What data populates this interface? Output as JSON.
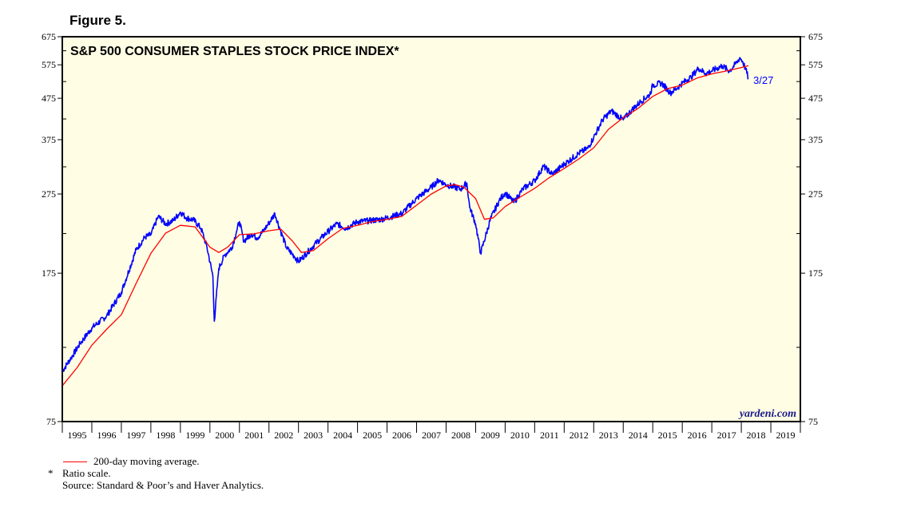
{
  "figure_label": "Figure 5.",
  "colors": {
    "price": "#0000ff",
    "moving_average": "#ff0000",
    "plot_bg": "#fffee4",
    "watermark": "#1a1a8c"
  },
  "chart_data": {
    "type": "line",
    "title": "S&P 500 CONSUMER STAPLES STOCK PRICE INDEX*",
    "scale": "log",
    "ylim": [
      75,
      675
    ],
    "xlim": [
      1995.0,
      2020.0
    ],
    "yticks": [
      75,
      175,
      275,
      375,
      475,
      575,
      675
    ],
    "yticks_left": [
      "75",
      "175",
      "275",
      "375",
      "475",
      "575",
      "675"
    ],
    "yticks_right": [
      "75",
      "175",
      "275",
      "375",
      "475",
      "575",
      "675"
    ],
    "xtick_labels": [
      "1995",
      "1996",
      "1997",
      "1998",
      "1999",
      "2000",
      "2001",
      "2002",
      "2003",
      "2004",
      "2005",
      "2006",
      "2007",
      "2008",
      "2009",
      "2010",
      "2011",
      "2012",
      "2013",
      "2014",
      "2015",
      "2016",
      "2017",
      "2018",
      "2019"
    ],
    "end_annotation": "3/27",
    "watermark": "yardeni.com",
    "series": [
      {
        "name": "S&P 500 Consumer Staples",
        "points": [
          [
            1995.0,
            100
          ],
          [
            1995.3,
            108
          ],
          [
            1995.6,
            117
          ],
          [
            1996.0,
            128
          ],
          [
            1996.5,
            137
          ],
          [
            1997.0,
            157
          ],
          [
            1997.5,
            200
          ],
          [
            1997.8,
            215
          ],
          [
            1998.0,
            218
          ],
          [
            1998.25,
            242
          ],
          [
            1998.5,
            232
          ],
          [
            1998.75,
            236
          ],
          [
            1999.0,
            248
          ],
          [
            1999.2,
            240
          ],
          [
            1999.45,
            237
          ],
          [
            1999.7,
            226
          ],
          [
            1999.9,
            203
          ],
          [
            2000.1,
            172
          ],
          [
            2000.15,
            133
          ],
          [
            2000.3,
            180
          ],
          [
            2000.5,
            194
          ],
          [
            2000.75,
            203
          ],
          [
            2000.9,
            222
          ],
          [
            2001.0,
            235
          ],
          [
            2001.15,
            210
          ],
          [
            2001.4,
            219
          ],
          [
            2001.6,
            214
          ],
          [
            2001.8,
            222
          ],
          [
            2002.0,
            233
          ],
          [
            2002.2,
            246
          ],
          [
            2002.4,
            222
          ],
          [
            2002.6,
            202
          ],
          [
            2002.85,
            193
          ],
          [
            2003.0,
            187
          ],
          [
            2003.3,
            197
          ],
          [
            2003.6,
            208
          ],
          [
            2004.0,
            222
          ],
          [
            2004.3,
            232
          ],
          [
            2004.6,
            226
          ],
          [
            2005.0,
            235
          ],
          [
            2005.4,
            236
          ],
          [
            2005.8,
            238
          ],
          [
            2006.0,
            240
          ],
          [
            2006.5,
            246
          ],
          [
            2007.0,
            268
          ],
          [
            2007.5,
            286
          ],
          [
            2007.75,
            298
          ],
          [
            2008.0,
            290
          ],
          [
            2008.5,
            283
          ],
          [
            2008.7,
            293
          ],
          [
            2008.8,
            255
          ],
          [
            2009.0,
            232
          ],
          [
            2009.17,
            196
          ],
          [
            2009.5,
            238
          ],
          [
            2009.8,
            265
          ],
          [
            2010.0,
            277
          ],
          [
            2010.3,
            262
          ],
          [
            2010.6,
            283
          ],
          [
            2011.0,
            297
          ],
          [
            2011.3,
            322
          ],
          [
            2011.6,
            308
          ],
          [
            2012.0,
            326
          ],
          [
            2012.5,
            347
          ],
          [
            2012.8,
            357
          ],
          [
            2013.0,
            380
          ],
          [
            2013.3,
            420
          ],
          [
            2013.6,
            442
          ],
          [
            2014.0,
            420
          ],
          [
            2014.3,
            445
          ],
          [
            2014.6,
            467
          ],
          [
            2014.9,
            485
          ],
          [
            2015.0,
            512
          ],
          [
            2015.3,
            518
          ],
          [
            2015.6,
            490
          ],
          [
            2015.85,
            505
          ],
          [
            2016.0,
            518
          ],
          [
            2016.3,
            536
          ],
          [
            2016.55,
            564
          ],
          [
            2016.8,
            547
          ],
          [
            2017.0,
            555
          ],
          [
            2017.35,
            572
          ],
          [
            2017.6,
            555
          ],
          [
            2017.85,
            583
          ],
          [
            2017.95,
            599
          ],
          [
            2018.05,
            585
          ],
          [
            2018.15,
            560
          ],
          [
            2018.24,
            532
          ]
        ]
      },
      {
        "name": "200-day moving average.",
        "points": [
          [
            1995.0,
            92
          ],
          [
            1995.5,
            102
          ],
          [
            1996.0,
            116
          ],
          [
            1996.5,
            127
          ],
          [
            1997.0,
            138
          ],
          [
            1997.5,
            165
          ],
          [
            1998.0,
            196
          ],
          [
            1998.5,
            220
          ],
          [
            1999.0,
            230
          ],
          [
            1999.5,
            228
          ],
          [
            2000.0,
            203
          ],
          [
            2000.3,
            197
          ],
          [
            2000.6,
            203
          ],
          [
            2001.0,
            218
          ],
          [
            2001.5,
            219
          ],
          [
            2002.0,
            223
          ],
          [
            2002.4,
            225
          ],
          [
            2002.8,
            210
          ],
          [
            2003.1,
            197
          ],
          [
            2003.5,
            199
          ],
          [
            2004.0,
            213
          ],
          [
            2004.5,
            226
          ],
          [
            2005.0,
            230
          ],
          [
            2005.5,
            235
          ],
          [
            2006.0,
            238
          ],
          [
            2006.5,
            242
          ],
          [
            2007.0,
            258
          ],
          [
            2007.5,
            275
          ],
          [
            2008.0,
            288
          ],
          [
            2008.3,
            290
          ],
          [
            2008.6,
            286
          ],
          [
            2009.0,
            268
          ],
          [
            2009.3,
            238
          ],
          [
            2009.6,
            240
          ],
          [
            2010.0,
            256
          ],
          [
            2010.5,
            270
          ],
          [
            2011.0,
            284
          ],
          [
            2011.5,
            302
          ],
          [
            2012.0,
            318
          ],
          [
            2012.5,
            336
          ],
          [
            2013.0,
            358
          ],
          [
            2013.5,
            398
          ],
          [
            2014.0,
            425
          ],
          [
            2014.5,
            448
          ],
          [
            2015.0,
            480
          ],
          [
            2015.5,
            502
          ],
          [
            2016.0,
            512
          ],
          [
            2016.5,
            533
          ],
          [
            2017.0,
            546
          ],
          [
            2017.5,
            555
          ],
          [
            2018.0,
            566
          ],
          [
            2018.24,
            572
          ]
        ]
      }
    ]
  },
  "notes": {
    "legend_label": "200-day moving average.",
    "ratio_marker": "*",
    "ratio_text": "Ratio scale.",
    "source": "Source: Standard & Poor’s and Haver Analytics."
  }
}
